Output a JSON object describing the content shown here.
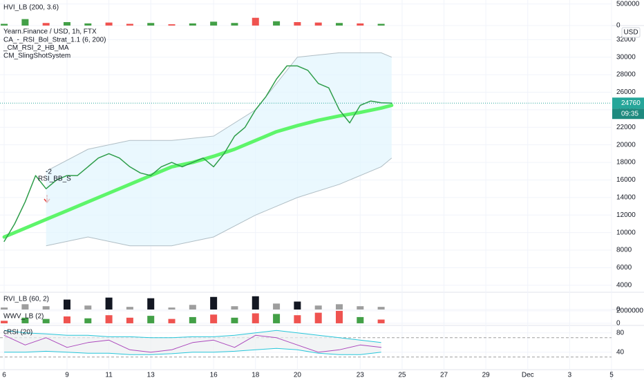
{
  "chart_data": [
    {
      "type": "bar",
      "title": "HVI_LB (200, 3.6)",
      "x": [
        6,
        7,
        8,
        9,
        10,
        11,
        12,
        13,
        14,
        15,
        16,
        17,
        18,
        19,
        20,
        21,
        22,
        23,
        24
      ],
      "values": [
        40000,
        150000,
        60000,
        80000,
        50000,
        70000,
        40000,
        60000,
        30000,
        50000,
        90000,
        60000,
        180000,
        100000,
        80000,
        70000,
        60000,
        50000,
        40000
      ],
      "colors": [
        "#43a047",
        "#43a047",
        "#ef5350",
        "#43a047",
        "#43a047",
        "#ef5350",
        "#ef5350",
        "#43a047",
        "#ef5350",
        "#43a047",
        "#43a047",
        "#43a047",
        "#ef5350",
        "#43a047",
        "#ef5350",
        "#ef5350",
        "#43a047",
        "#ef5350",
        "#43a047"
      ],
      "ylim": [
        0,
        560000
      ],
      "yticks": [
        0,
        500000
      ]
    },
    {
      "type": "line",
      "title": "Yearn.Finance / USD, 1h, FTX",
      "indicators": [
        "CA_-_RSI_Bol_Strat_1.1 (6, 200)",
        "_CM_RSI_2_HB_MA",
        "CM_SlingShotSystem"
      ],
      "annotations": [
        "-2",
        "RSI_BB_S"
      ],
      "currency": "USD",
      "last_price": 24760,
      "last_time": "09:35",
      "xlim": [
        5.8,
        35
      ],
      "xticks": [
        6,
        9,
        11,
        13,
        16,
        18,
        20,
        23,
        25,
        27,
        29,
        {
          "value": 31,
          "label": "Dec"
        },
        {
          "value": 33,
          "label": "3"
        },
        {
          "value": 35,
          "label": "5"
        }
      ],
      "ylim": [
        3200,
        33600
      ],
      "yticks": [
        4000,
        6000,
        8000,
        10000,
        12000,
        14000,
        16000,
        18000,
        20000,
        22000,
        24000,
        26000,
        28000,
        30000,
        32000
      ],
      "band": {
        "color": "#e1f5fe",
        "stroke": "#b0bec5",
        "x": [
          8,
          10,
          12,
          14,
          16,
          18,
          20,
          22,
          24,
          24.5
        ],
        "upper": [
          17000,
          19500,
          20500,
          20500,
          21000,
          24000,
          30000,
          30500,
          30500,
          30000
        ],
        "lower": [
          8500,
          9500,
          8500,
          8500,
          9500,
          12000,
          14000,
          15500,
          17500,
          18500
        ]
      },
      "series": [
        {
          "color": "#5ef56a",
          "width": 5,
          "x": [
            6,
            7,
            8,
            9,
            10,
            11,
            12,
            13,
            14,
            15,
            16,
            17,
            18,
            19,
            20,
            21,
            22,
            23,
            24,
            24.5
          ],
          "values": [
            9500,
            10500,
            11500,
            12500,
            13500,
            14500,
            15500,
            16500,
            17500,
            18000,
            18700,
            19500,
            20500,
            21500,
            22200,
            22800,
            23300,
            23700,
            24200,
            24500
          ]
        },
        {
          "color": "#2e9d4a",
          "width": 1.5,
          "x": [
            6,
            6.5,
            7,
            7.5,
            8,
            8.5,
            9,
            9.5,
            10,
            10.5,
            11,
            11.5,
            12,
            12.5,
            13,
            13.5,
            14,
            14.5,
            15,
            15.5,
            16,
            16.5,
            17,
            17.5,
            18,
            18.5,
            19,
            19.5,
            20,
            20.5,
            21,
            21.5,
            22,
            22.5,
            23,
            23.5,
            24,
            24.5
          ],
          "values": [
            9000,
            11000,
            13500,
            16500,
            15000,
            16000,
            16500,
            16500,
            17500,
            18500,
            19000,
            18500,
            17500,
            16800,
            16500,
            17500,
            18000,
            17500,
            18000,
            18500,
            17500,
            19000,
            21000,
            22000,
            24000,
            25500,
            27500,
            29000,
            29000,
            28500,
            27000,
            26500,
            24000,
            22500,
            24500,
            25000,
            24800,
            24760
          ]
        }
      ]
    },
    {
      "type": "bar",
      "title": "RVI_LB (60, 2)",
      "x": [
        6,
        7,
        8,
        9,
        10,
        11,
        12,
        13,
        14,
        15,
        16,
        17,
        18,
        19,
        20,
        21,
        22,
        23,
        24
      ],
      "values": [
        300000,
        800000,
        500000,
        1500000,
        600000,
        1800000,
        400000,
        1700000,
        300000,
        700000,
        1900000,
        500000,
        2000000,
        900000,
        1200000,
        600000,
        800000,
        500000,
        400000
      ],
      "colors": [
        "#9e9e9e",
        "#9e9e9e",
        "#9e9e9e",
        "#131722",
        "#9e9e9e",
        "#131722",
        "#9e9e9e",
        "#131722",
        "#9e9e9e",
        "#9e9e9e",
        "#131722",
        "#9e9e9e",
        "#131722",
        "#9e9e9e",
        "#131722",
        "#9e9e9e",
        "#9e9e9e",
        "#9e9e9e",
        "#9e9e9e"
      ],
      "ylim": [
        0,
        2500000
      ],
      "yticks": [
        0
      ]
    },
    {
      "type": "bar",
      "title": "WWV_LB (2)",
      "x": [
        6,
        7,
        8,
        9,
        10,
        11,
        12,
        13,
        14,
        15,
        16,
        17,
        18,
        19,
        20,
        21,
        22,
        23,
        24
      ],
      "values": [
        400000,
        900000,
        700000,
        1100000,
        800000,
        1300000,
        900000,
        1200000,
        700000,
        1000000,
        1400000,
        900000,
        1600000,
        1500000,
        1300000,
        1700000,
        2000000,
        1000000,
        600000
      ],
      "colors": [
        "#ef5350",
        "#43a047",
        "#43a047",
        "#ef5350",
        "#43a047",
        "#ef5350",
        "#ef5350",
        "#43a047",
        "#ef5350",
        "#43a047",
        "#ef5350",
        "#43a047",
        "#ef5350",
        "#43a047",
        "#ef5350",
        "#ef5350",
        "#ef5350",
        "#43a047",
        "#ef5350"
      ],
      "ylim": [
        -230000,
        2100000
      ],
      "yticks": [
        0,
        2000000
      ]
    },
    {
      "type": "line",
      "title": "cRSI (20)",
      "ylim": [
        4,
        94
      ],
      "yticks": [
        40,
        80
      ],
      "levels": [
        30,
        70
      ],
      "band": {
        "color": "#eceff1",
        "stroke": "#26c6da",
        "x": [
          6,
          7,
          8,
          9,
          10,
          11,
          12,
          13,
          14,
          15,
          16,
          17,
          18,
          19,
          20,
          21,
          22,
          23,
          24
        ],
        "upper": [
          85,
          80,
          78,
          75,
          75,
          72,
          72,
          70,
          70,
          72,
          72,
          75,
          80,
          85,
          80,
          75,
          70,
          65,
          60
        ],
        "lower": [
          40,
          40,
          42,
          40,
          38,
          38,
          35,
          35,
          37,
          40,
          40,
          42,
          45,
          48,
          45,
          38,
          35,
          35,
          40
        ]
      },
      "series": [
        {
          "color": "#ab47bc",
          "width": 1,
          "x": [
            6,
            7,
            8,
            9,
            10,
            11,
            12,
            13,
            14,
            15,
            16,
            17,
            18,
            19,
            20,
            21,
            22,
            23,
            24
          ],
          "values": [
            75,
            55,
            70,
            50,
            60,
            65,
            45,
            40,
            45,
            60,
            65,
            50,
            75,
            70,
            55,
            40,
            45,
            55,
            50
          ]
        }
      ]
    }
  ]
}
